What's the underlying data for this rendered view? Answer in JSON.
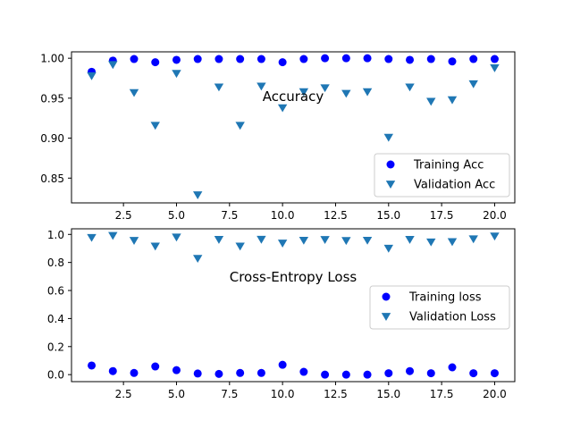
{
  "colors": {
    "training": "#0000ff",
    "validation": "#1f77b4",
    "axes": "#000000",
    "legend_border": "#cccccc"
  },
  "chart_data": [
    {
      "type": "scatter",
      "title": "Accuracy",
      "title_placement": "inside-center",
      "xlim": [
        0.05,
        20.95
      ],
      "ylim": [
        0.819,
        1.008
      ],
      "xticks": [
        2.5,
        5.0,
        7.5,
        10.0,
        12.5,
        15.0,
        17.5,
        20.0
      ],
      "xtick_labels": [
        "2.5",
        "5.0",
        "7.5",
        "10.0",
        "12.5",
        "15.0",
        "17.5",
        "20.0"
      ],
      "yticks": [
        0.85,
        0.9,
        0.95,
        1.0
      ],
      "ytick_labels": [
        "0.85",
        "0.90",
        "0.95",
        "1.00"
      ],
      "grid": false,
      "legend_placement": "lower-right",
      "x": [
        1,
        2,
        3,
        4,
        5,
        6,
        7,
        8,
        9,
        10,
        11,
        12,
        13,
        14,
        15,
        16,
        17,
        18,
        19,
        20
      ],
      "series": [
        {
          "name": "Training Acc",
          "marker": "circle",
          "color": "#0000ff",
          "values": [
            0.983,
            0.997,
            0.999,
            0.995,
            0.998,
            0.999,
            0.999,
            0.999,
            0.999,
            0.995,
            0.999,
            1.0,
            1.0,
            1.0,
            0.999,
            0.998,
            0.999,
            0.996,
            0.999,
            0.999
          ]
        },
        {
          "name": "Validation Acc",
          "marker": "triangle-down",
          "color": "#1f77b4",
          "values": [
            0.978,
            0.992,
            0.957,
            0.916,
            0.981,
            0.829,
            0.964,
            0.916,
            0.965,
            0.938,
            0.958,
            0.963,
            0.956,
            0.958,
            0.901,
            0.964,
            0.946,
            0.948,
            0.968,
            0.988
          ]
        }
      ]
    },
    {
      "type": "scatter",
      "title": "Cross-Entropy Loss",
      "title_placement": "inside-center",
      "xlim": [
        0.05,
        20.95
      ],
      "ylim": [
        -0.05,
        1.04
      ],
      "xticks": [
        2.5,
        5.0,
        7.5,
        10.0,
        12.5,
        15.0,
        17.5,
        20.0
      ],
      "xtick_labels": [
        "2.5",
        "5.0",
        "7.5",
        "10.0",
        "12.5",
        "15.0",
        "17.5",
        "20.0"
      ],
      "yticks": [
        0.0,
        0.2,
        0.4,
        0.6,
        0.8,
        1.0
      ],
      "ytick_labels": [
        "0.0",
        "0.2",
        "0.4",
        "0.6",
        "0.8",
        "1.0"
      ],
      "grid": false,
      "legend_placement": "upper-right",
      "x": [
        1,
        2,
        3,
        4,
        5,
        6,
        7,
        8,
        9,
        10,
        11,
        12,
        13,
        14,
        15,
        16,
        17,
        18,
        19,
        20
      ],
      "series": [
        {
          "name": "Training loss",
          "marker": "circle",
          "color": "#0000ff",
          "values": [
            0.065,
            0.025,
            0.012,
            0.058,
            0.032,
            0.008,
            0.005,
            0.012,
            0.012,
            0.07,
            0.02,
            0.0,
            0.0,
            0.0,
            0.01,
            0.025,
            0.01,
            0.052,
            0.01,
            0.01
          ]
        },
        {
          "name": "Validation Loss",
          "marker": "triangle-down",
          "color": "#1f77b4",
          "values": [
            0.978,
            0.992,
            0.957,
            0.916,
            0.981,
            0.829,
            0.964,
            0.916,
            0.965,
            0.938,
            0.958,
            0.963,
            0.956,
            0.958,
            0.901,
            0.964,
            0.946,
            0.948,
            0.968,
            0.988
          ]
        }
      ]
    }
  ]
}
